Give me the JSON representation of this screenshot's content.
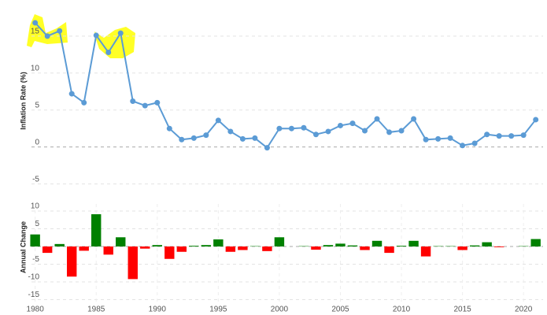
{
  "chart_data": [
    {
      "type": "line",
      "y_label": "Inflation Rate (%)",
      "color": "#5b9bd5",
      "grid": true,
      "x": [
        1980,
        1981,
        1982,
        1983,
        1984,
        1985,
        1986,
        1987,
        1988,
        1989,
        1990,
        1991,
        1992,
        1993,
        1994,
        1995,
        1996,
        1997,
        1998,
        1999,
        2000,
        2001,
        2002,
        2003,
        2004,
        2005,
        2006,
        2007,
        2008,
        2009,
        2010,
        2011,
        2012,
        2013,
        2014,
        2015,
        2016,
        2017,
        2018,
        2019,
        2020,
        2021
      ],
      "values": [
        16.8,
        15.0,
        15.7,
        7.2,
        6.0,
        15.1,
        12.8,
        15.4,
        6.2,
        5.6,
        6.0,
        2.5,
        1.0,
        1.2,
        1.6,
        3.6,
        2.1,
        1.1,
        1.2,
        -0.1,
        2.5,
        2.5,
        2.6,
        1.7,
        2.1,
        2.9,
        3.2,
        2.2,
        3.8,
        2.0,
        2.2,
        3.8,
        1.0,
        1.1,
        1.2,
        0.2,
        0.5,
        1.7,
        1.5,
        1.5,
        1.6,
        3.7
      ],
      "xlim": [
        1979.7,
        2021.6
      ],
      "ylim": [
        -6,
        18.5
      ],
      "yticks": [
        -5,
        0,
        5,
        10,
        15
      ]
    },
    {
      "type": "bar",
      "y_label": "Annual Change",
      "positive_color": "#008000",
      "negative_color": "#ff0000",
      "grid": true,
      "x": [
        1980,
        1981,
        1982,
        1983,
        1984,
        1985,
        1986,
        1987,
        1988,
        1989,
        1990,
        1991,
        1992,
        1993,
        1994,
        1995,
        1996,
        1997,
        1998,
        1999,
        2000,
        2001,
        2002,
        2003,
        2004,
        2005,
        2006,
        2007,
        2008,
        2009,
        2010,
        2011,
        2012,
        2013,
        2014,
        2015,
        2016,
        2017,
        2018,
        2019,
        2020,
        2021
      ],
      "values": [
        3.4,
        -1.8,
        0.7,
        -8.5,
        -1.2,
        9.1,
        -2.3,
        2.6,
        -9.2,
        -0.6,
        0.4,
        -3.5,
        -1.5,
        0.2,
        0.4,
        2.0,
        -1.5,
        -1.0,
        0.1,
        -1.3,
        2.6,
        0.0,
        0.1,
        -0.9,
        0.4,
        0.8,
        0.3,
        -1.0,
        1.6,
        -1.8,
        0.2,
        1.6,
        -2.8,
        0.1,
        0.1,
        -1.0,
        0.3,
        1.2,
        -0.2,
        0.0,
        0.1,
        2.1
      ],
      "xlim": [
        1979.7,
        2021.6
      ],
      "ylim": [
        -16,
        12
      ],
      "yticks": [
        -15,
        -10,
        -5,
        0,
        5,
        10
      ],
      "xticks": [
        1980,
        1985,
        1990,
        1995,
        2000,
        2005,
        2010,
        2015,
        2020
      ]
    }
  ]
}
